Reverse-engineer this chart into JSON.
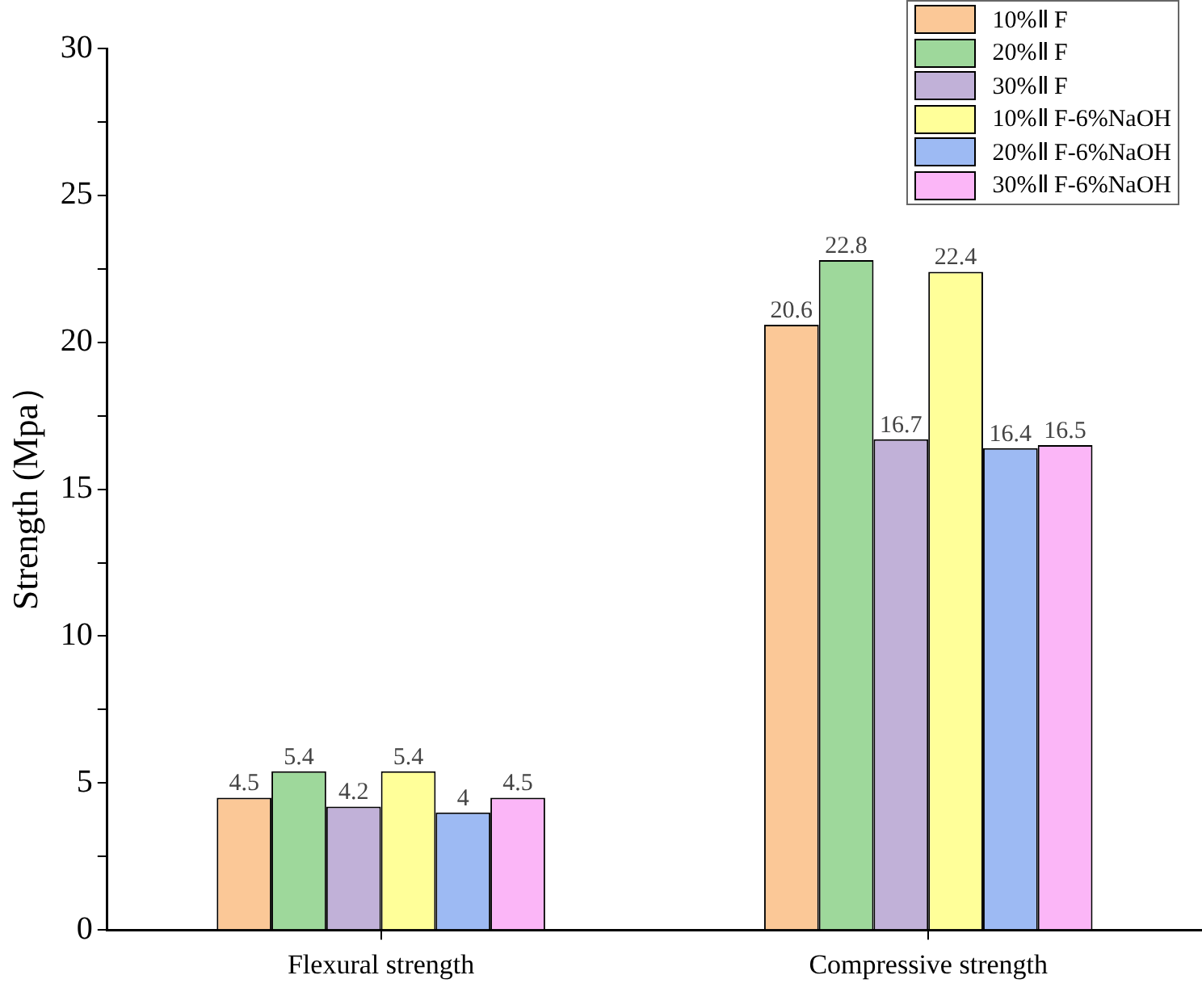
{
  "chart_data": {
    "type": "bar",
    "ylabel": "Strength (Mpa）",
    "categories": [
      "Flexural strength",
      "Compressive strength"
    ],
    "series": [
      {
        "name": "10%Ⅱ F",
        "color": "#fbc897",
        "values": [
          4.5,
          20.6
        ]
      },
      {
        "name": "20%Ⅱ F",
        "color": "#9ed89b",
        "values": [
          5.4,
          22.8
        ]
      },
      {
        "name": "30%Ⅱ F",
        "color": "#c1b1d8",
        "values": [
          4.2,
          16.7
        ]
      },
      {
        "name": "10%Ⅱ F-6%NaOH",
        "color": "#ffff99",
        "values": [
          5.4,
          22.4
        ]
      },
      {
        "name": "20%Ⅱ F-6%NaOH",
        "color": "#9dbaf3",
        "values": [
          4,
          16.4
        ]
      },
      {
        "name": "30%Ⅱ F-6%NaOH",
        "color": "#fbb6f7",
        "values": [
          4.5,
          16.5
        ]
      }
    ],
    "ylim": [
      0,
      30
    ],
    "yticks": [
      0,
      {
        "value": 2.5,
        "label": null
      },
      5,
      {
        "value": 7.5,
        "label": null
      },
      10,
      {
        "value": 12.5,
        "label": null
      },
      15,
      {
        "value": 17.5,
        "label": null
      },
      20,
      {
        "value": 22.5,
        "label": null
      },
      25,
      {
        "value": 27.5,
        "label": null
      },
      30
    ],
    "data_labels": true,
    "grid": false,
    "legend": "top right"
  }
}
